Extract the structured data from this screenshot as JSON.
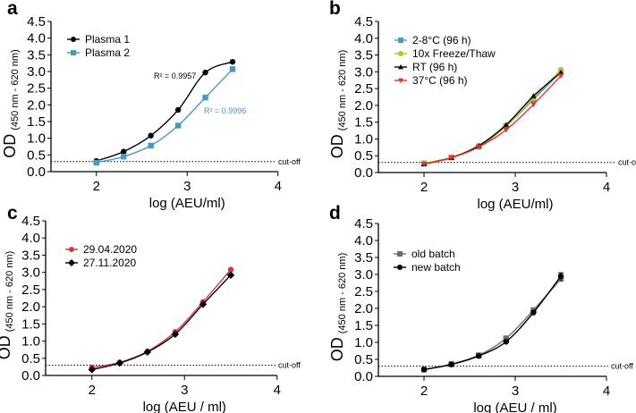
{
  "chart_data": [
    {
      "panel": "a",
      "type": "line",
      "xlabel": "log (AEU/ml)",
      "ylabel_main": "OD",
      "ylabel_sub": "(450 nm - 620 nm)",
      "xlim": [
        1.5,
        4
      ],
      "ylim": [
        0,
        4.5
      ],
      "xticks": [
        2,
        3,
        4
      ],
      "yticks": [
        "0.0",
        "0.5",
        "1.0",
        "1.5",
        "2.0",
        "2.5",
        "3.0",
        "3.5",
        "4.0",
        "4.5"
      ],
      "cutoff": {
        "value": 0.3,
        "label": "cut-off"
      },
      "legend_position": "top-left",
      "x": [
        2,
        2.3,
        2.6,
        2.9,
        3.2,
        3.5
      ],
      "series": [
        {
          "name": "Plasma 1",
          "color": "#000000",
          "marker": "circle",
          "values": [
            0.32,
            0.6,
            1.08,
            1.85,
            2.97,
            3.29
          ],
          "annotation": "R² = 0.9957"
        },
        {
          "name": "Plasma 2",
          "color": "#4a98c2",
          "marker": "square",
          "values": [
            0.27,
            0.45,
            0.78,
            1.38,
            2.22,
            3.07
          ],
          "annotation": "R² = 0.9996"
        }
      ]
    },
    {
      "panel": "b",
      "type": "line",
      "xlabel": "log (AEU/ml)",
      "ylabel_main": "OD",
      "ylabel_sub": "(450 nm - 620 nm)",
      "xlim": [
        1.5,
        4
      ],
      "ylim": [
        0,
        4.5
      ],
      "xticks": [
        2,
        3,
        4
      ],
      "yticks": [
        "0.0",
        "0.5",
        "1.0",
        "1.5",
        "2.0",
        "2.5",
        "3.0",
        "3.5",
        "4.0",
        "4.5"
      ],
      "cutoff": {
        "value": 0.3,
        "label": "cut-off"
      },
      "legend_position": "top-left",
      "x": [
        2,
        2.3,
        2.6,
        2.9,
        3.2,
        3.5
      ],
      "series": [
        {
          "name": "2-8°C (96 h)",
          "color": "#4a9bc4",
          "marker": "square",
          "values": [
            0.27,
            0.45,
            0.77,
            1.38,
            2.18,
            3.0
          ]
        },
        {
          "name": "10x Freeze/Thaw",
          "color": "#b5c42a",
          "marker": "circle",
          "values": [
            0.28,
            0.45,
            0.79,
            1.38,
            2.22,
            3.06
          ]
        },
        {
          "name": "RT (96 h)",
          "color": "#000000",
          "marker": "triangle-up",
          "values": [
            0.25,
            0.44,
            0.8,
            1.42,
            2.28,
            2.98
          ]
        },
        {
          "name": "37°C (96 h)",
          "color": "#e8302e",
          "marker": "triangle-down",
          "values": [
            0.25,
            0.44,
            0.76,
            1.27,
            2.03,
            2.88
          ]
        }
      ]
    },
    {
      "panel": "c",
      "type": "line",
      "xlabel": "log (AEU / ml)",
      "ylabel_main": "OD",
      "ylabel_sub": "(450 nm - 620 nm)",
      "xlim": [
        1.5,
        4
      ],
      "ylim": [
        0,
        4.5
      ],
      "xticks": [
        2,
        3,
        4
      ],
      "yticks": [
        "0.0",
        "0.5",
        "1.0",
        "1.5",
        "2.0",
        "2.5",
        "3.0",
        "3.5",
        "4.0",
        "4.5"
      ],
      "cutoff": {
        "value": 0.3,
        "label": "cut-off"
      },
      "legend_position": "top-left",
      "x": [
        2,
        2.3,
        2.6,
        2.9,
        3.2,
        3.5
      ],
      "series": [
        {
          "name": "29.04.2020",
          "color": "#d03a3a",
          "marker": "circle",
          "values": [
            0.23,
            0.38,
            0.7,
            1.27,
            2.14,
            3.08
          ]
        },
        {
          "name": "27.11.2020",
          "color": "#000000",
          "marker": "diamond",
          "values": [
            0.17,
            0.36,
            0.68,
            1.2,
            2.07,
            2.92
          ]
        }
      ]
    },
    {
      "panel": "d",
      "type": "line",
      "xlabel": "log (AEU / ml)",
      "ylabel_main": "OD",
      "ylabel_sub": "(450 nm - 620 nm)",
      "xlim": [
        1.5,
        4
      ],
      "ylim": [
        0,
        4.5
      ],
      "xticks": [
        2,
        3,
        4
      ],
      "yticks": [
        "0.0",
        "0.5",
        "1.0",
        "1.5",
        "2.0",
        "2.5",
        "3.0",
        "3.5",
        "4.0",
        "4.5"
      ],
      "cutoff": {
        "value": 0.3,
        "label": "cut-off"
      },
      "legend_position": "top-left",
      "x": [
        2,
        2.3,
        2.6,
        2.9,
        3.2,
        3.5
      ],
      "series": [
        {
          "name": "old batch",
          "color": "#6d6d6d",
          "marker": "square",
          "values": [
            0.2,
            0.36,
            0.62,
            1.12,
            1.95,
            2.87
          ]
        },
        {
          "name": "new batch",
          "color": "#000000",
          "marker": "circle",
          "values": [
            0.2,
            0.35,
            0.6,
            1.02,
            1.88,
            2.95
          ]
        }
      ]
    }
  ]
}
